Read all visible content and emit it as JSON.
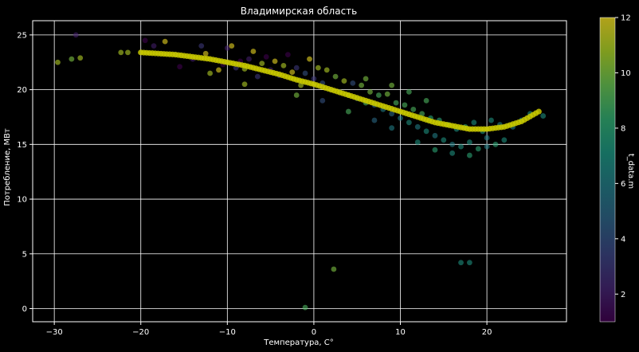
{
  "chart_data": {
    "type": "scatter",
    "title": "Владимирская область",
    "xlabel": "Температура, С°",
    "ylabel": "Потребление, МВт",
    "xlim": [
      -32.5,
      29.2
    ],
    "ylim": [
      -1.2,
      26.3
    ],
    "xticks": [
      -30,
      -20,
      -10,
      0,
      10,
      20
    ],
    "yticks": [
      0,
      5,
      10,
      15,
      20,
      25
    ],
    "grid": true,
    "colorbar": {
      "label": "t_data.m",
      "range": [
        1,
        12
      ],
      "ticks": [
        2,
        4,
        6,
        8,
        10,
        12
      ],
      "colormap": "viridis"
    },
    "colormap_stops": [
      "#440154",
      "#482878",
      "#3e4989",
      "#31688e",
      "#26828e",
      "#1f9e89",
      "#35b779",
      "#6ece58",
      "#b5de2b",
      "#fde725"
    ],
    "fit_color": "#c8c800",
    "series": [
      {
        "kind": "points",
        "note_columns": [
          "temperature",
          "consumption",
          "month"
        ],
        "points": [
          [
            -29.6,
            22.5,
            11
          ],
          [
            -28.0,
            22.8,
            10
          ],
          [
            -27.0,
            22.9,
            11
          ],
          [
            -27.5,
            25.0,
            2
          ],
          [
            -22.3,
            23.4,
            11
          ],
          [
            -21.5,
            23.4,
            11
          ],
          [
            -19.5,
            24.5,
            1
          ],
          [
            -18.5,
            24.0,
            2
          ],
          [
            -17.2,
            24.4,
            12
          ],
          [
            -16.0,
            23.2,
            3
          ],
          [
            -15.5,
            22.1,
            1
          ],
          [
            -14.0,
            22.8,
            2
          ],
          [
            -13.0,
            24.0,
            3
          ],
          [
            -12.5,
            23.3,
            12
          ],
          [
            -12.0,
            21.5,
            11
          ],
          [
            -11.0,
            21.8,
            12
          ],
          [
            -10.5,
            22.3,
            1
          ],
          [
            -10.0,
            23.8,
            2
          ],
          [
            -9.5,
            24.0,
            12
          ],
          [
            -9.0,
            22.0,
            3
          ],
          [
            -8.5,
            22.6,
            1
          ],
          [
            -8.0,
            21.9,
            11
          ],
          [
            -7.5,
            22.8,
            2
          ],
          [
            -7.0,
            23.5,
            12
          ],
          [
            -6.5,
            21.2,
            3
          ],
          [
            -6.0,
            22.4,
            11
          ],
          [
            -5.5,
            23.0,
            1
          ],
          [
            -5.0,
            21.8,
            2
          ],
          [
            -4.5,
            22.6,
            12
          ],
          [
            -4.0,
            21.3,
            3
          ],
          [
            -3.5,
            22.2,
            11
          ],
          [
            -3.0,
            23.2,
            1
          ],
          [
            -2.5,
            21.6,
            12
          ],
          [
            -2.0,
            22.0,
            3
          ],
          [
            -1.5,
            20.4,
            11
          ],
          [
            -1.0,
            21.5,
            4
          ],
          [
            -0.5,
            22.8,
            12
          ],
          [
            0.0,
            21.0,
            3
          ],
          [
            0.5,
            22.0,
            11
          ],
          [
            1.0,
            20.6,
            4
          ],
          [
            1.5,
            21.8,
            11
          ],
          [
            2.0,
            20.0,
            3
          ],
          [
            2.5,
            21.2,
            10
          ],
          [
            3.0,
            19.8,
            4
          ],
          [
            3.5,
            20.8,
            11
          ],
          [
            4.0,
            19.5,
            10
          ],
          [
            4.5,
            20.6,
            4
          ],
          [
            5.0,
            19.2,
            5
          ],
          [
            5.5,
            20.4,
            10
          ],
          [
            6.0,
            18.8,
            9
          ],
          [
            6.5,
            19.8,
            10
          ],
          [
            7.0,
            18.6,
            5
          ],
          [
            7.5,
            19.5,
            9
          ],
          [
            8.0,
            18.2,
            6
          ],
          [
            8.5,
            19.6,
            10
          ],
          [
            9.0,
            17.8,
            5
          ],
          [
            9.5,
            18.8,
            9
          ],
          [
            10.0,
            17.4,
            6
          ],
          [
            10.5,
            18.6,
            9
          ],
          [
            11.0,
            17.0,
            7
          ],
          [
            11.5,
            18.2,
            9
          ],
          [
            12.0,
            16.6,
            6
          ],
          [
            12.5,
            17.8,
            9
          ],
          [
            13.0,
            16.2,
            7
          ],
          [
            13.5,
            17.4,
            8
          ],
          [
            14.0,
            15.8,
            6
          ],
          [
            14.5,
            17.2,
            8
          ],
          [
            15.0,
            15.4,
            7
          ],
          [
            15.5,
            16.8,
            8
          ],
          [
            16.0,
            15.0,
            6
          ],
          [
            16.5,
            16.4,
            7
          ],
          [
            17.0,
            14.8,
            7
          ],
          [
            17.5,
            16.6,
            8
          ],
          [
            18.0,
            15.2,
            7
          ],
          [
            18.5,
            17.0,
            7
          ],
          [
            19.0,
            14.6,
            8
          ],
          [
            19.5,
            16.2,
            7
          ],
          [
            20.0,
            15.6,
            6
          ],
          [
            20.5,
            17.2,
            7
          ],
          [
            21.0,
            15.0,
            8
          ],
          [
            21.5,
            16.8,
            6
          ],
          [
            22.0,
            15.4,
            7
          ],
          [
            23.0,
            16.6,
            6
          ],
          [
            24.0,
            17.2,
            7
          ],
          [
            25.0,
            17.8,
            7
          ],
          [
            26.5,
            17.6,
            7
          ],
          [
            -8.0,
            20.5,
            11
          ],
          [
            -2.0,
            19.5,
            10
          ],
          [
            1.0,
            19.0,
            4
          ],
          [
            4.0,
            18.0,
            9
          ],
          [
            7.0,
            17.2,
            5
          ],
          [
            9.0,
            16.5,
            6
          ],
          [
            12.0,
            15.2,
            7
          ],
          [
            14.0,
            14.5,
            8
          ],
          [
            16.0,
            14.2,
            7
          ],
          [
            18.0,
            14.0,
            8
          ],
          [
            20.0,
            14.8,
            6
          ],
          [
            6.0,
            21.0,
            10
          ],
          [
            9.0,
            20.4,
            10
          ],
          [
            11.0,
            19.8,
            9
          ],
          [
            13.0,
            19.0,
            9
          ],
          [
            -1.0,
            0.1,
            9
          ],
          [
            2.3,
            3.6,
            10
          ],
          [
            17.0,
            4.2,
            7
          ],
          [
            18.0,
            4.2,
            7
          ]
        ]
      },
      {
        "kind": "fit",
        "points": [
          [
            -20.0,
            23.4
          ],
          [
            -18.0,
            23.3
          ],
          [
            -16.0,
            23.2
          ],
          [
            -14.0,
            23.0
          ],
          [
            -12.0,
            22.8
          ],
          [
            -10.0,
            22.5
          ],
          [
            -8.0,
            22.2
          ],
          [
            -6.0,
            21.8
          ],
          [
            -4.0,
            21.4
          ],
          [
            -2.0,
            20.9
          ],
          [
            0.0,
            20.5
          ],
          [
            2.0,
            20.0
          ],
          [
            4.0,
            19.5
          ],
          [
            6.0,
            19.0
          ],
          [
            8.0,
            18.5
          ],
          [
            10.0,
            18.0
          ],
          [
            12.0,
            17.5
          ],
          [
            14.0,
            17.0
          ],
          [
            16.0,
            16.7
          ],
          [
            18.0,
            16.4
          ],
          [
            20.0,
            16.4
          ],
          [
            22.0,
            16.6
          ],
          [
            24.0,
            17.1
          ],
          [
            26.0,
            18.0
          ]
        ]
      }
    ]
  }
}
